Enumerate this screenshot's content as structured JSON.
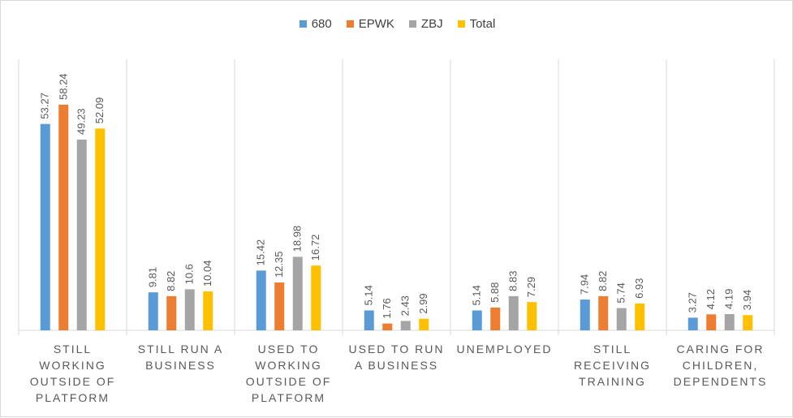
{
  "chart_data": {
    "type": "bar",
    "categories": [
      [
        "STILL",
        "WORKING",
        "OUTSIDE OF",
        "PLATFORM"
      ],
      [
        "STILL RUN A",
        "BUSINESS"
      ],
      [
        "USED TO",
        "WORKING",
        "OUTSIDE OF",
        "PLATFORM"
      ],
      [
        "USED TO RUN",
        "A BUSINESS"
      ],
      [
        "UNEMPLOYED"
      ],
      [
        "STILL",
        "RECEIVING",
        "TRAINING"
      ],
      [
        "CARING FOR",
        "CHILDREN,",
        "DEPENDENTS"
      ]
    ],
    "series": [
      {
        "name": "680",
        "color": "#5b9bd5",
        "values": [
          53.27,
          9.81,
          15.42,
          5.14,
          5.14,
          7.94,
          3.27
        ],
        "labels": [
          "53.27",
          "9.81",
          "15.42",
          "5.14",
          "5.14",
          "7.94",
          "3.27"
        ]
      },
      {
        "name": "EPWK",
        "color": "#ed7d31",
        "values": [
          58.24,
          8.82,
          12.35,
          1.76,
          5.88,
          8.82,
          4.12
        ],
        "labels": [
          "58.24",
          "8.82",
          "12.35",
          "1.76",
          "5.88",
          "8.82",
          "4.12"
        ]
      },
      {
        "name": "ZBJ",
        "color": "#a5a5a5",
        "values": [
          49.23,
          10.6,
          18.98,
          2.43,
          8.83,
          5.74,
          4.19
        ],
        "labels": [
          "49.23",
          "10.6",
          "18.98",
          "2.43",
          "8.83",
          "5.74",
          "4.19"
        ]
      },
      {
        "name": "Total",
        "color": "#ffc000",
        "values": [
          52.09,
          10.04,
          16.72,
          2.99,
          7.29,
          6.93,
          3.94
        ],
        "labels": [
          "52.09",
          "10.04",
          "16.72",
          "2.99",
          "7.29",
          "6.93",
          "3.94"
        ]
      }
    ],
    "ylim": [
      0,
      60
    ],
    "legend_position": "top",
    "grid": false
  }
}
